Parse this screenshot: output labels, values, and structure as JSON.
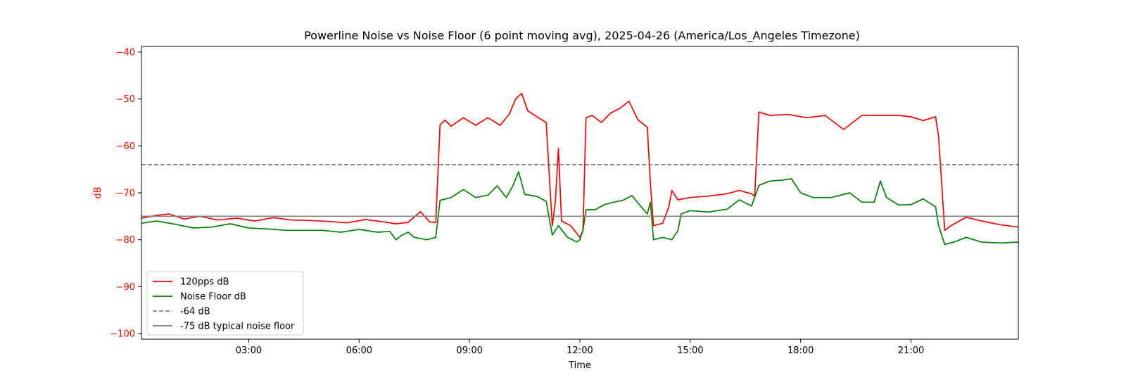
{
  "chart_data": {
    "type": "line",
    "title": "Powerline Noise vs Noise Floor (6 point moving avg), 2025-04-26 (America/Los_Angeles Timezone)",
    "xlabel": "Time",
    "ylabel": "dB",
    "ylabel_color": "#ff0000",
    "xlim": [
      "00:05",
      "23:55"
    ],
    "ylim": [
      -101.2,
      -38.8
    ],
    "x_ticks": [
      "03:00",
      "06:00",
      "09:00",
      "12:00",
      "15:00",
      "18:00",
      "21:00"
    ],
    "y_ticks": [
      -40,
      -50,
      -60,
      -70,
      -80,
      -90,
      -100
    ],
    "y_tick_color": "#ff0000",
    "grid": false,
    "legend_position": "lower-left",
    "series": [
      {
        "name": "120pps dB",
        "color": "#ff0000",
        "style": "solid",
        "points": [
          [
            "00:05",
            -75.4
          ],
          [
            "00:30",
            -74.8
          ],
          [
            "00:50",
            -74.5
          ],
          [
            "01:15",
            -75.6
          ],
          [
            "01:40",
            -75.0
          ],
          [
            "02:10",
            -75.8
          ],
          [
            "02:40",
            -75.4
          ],
          [
            "03:10",
            -76.0
          ],
          [
            "03:40",
            -75.3
          ],
          [
            "04:10",
            -75.8
          ],
          [
            "04:40",
            -75.9
          ],
          [
            "05:10",
            -76.1
          ],
          [
            "05:40",
            -76.4
          ],
          [
            "06:10",
            -75.7
          ],
          [
            "06:40",
            -76.2
          ],
          [
            "07:00",
            -76.6
          ],
          [
            "07:20",
            -76.3
          ],
          [
            "07:40",
            -74.0
          ],
          [
            "07:55",
            -76.2
          ],
          [
            "08:05",
            -76.3
          ],
          [
            "08:12",
            -55.5
          ],
          [
            "08:20",
            -54.5
          ],
          [
            "08:30",
            -55.8
          ],
          [
            "08:50",
            -54.0
          ],
          [
            "09:10",
            -55.6
          ],
          [
            "09:30",
            -54.0
          ],
          [
            "09:50",
            -55.6
          ],
          [
            "10:05",
            -53.2
          ],
          [
            "10:15",
            -50.0
          ],
          [
            "10:25",
            -48.8
          ],
          [
            "10:35",
            -52.5
          ],
          [
            "10:50",
            -53.8
          ],
          [
            "11:05",
            -55.0
          ],
          [
            "11:10",
            -66.0
          ],
          [
            "11:15",
            -77.0
          ],
          [
            "11:20",
            -72.0
          ],
          [
            "11:25",
            -60.5
          ],
          [
            "11:30",
            -76.0
          ],
          [
            "11:45",
            -77.0
          ],
          [
            "12:00",
            -79.5
          ],
          [
            "12:05",
            -78.0
          ],
          [
            "12:10",
            -54.0
          ],
          [
            "12:20",
            -53.5
          ],
          [
            "12:35",
            -55.0
          ],
          [
            "12:50",
            -53.0
          ],
          [
            "13:05",
            -52.0
          ],
          [
            "13:20",
            -50.5
          ],
          [
            "13:35",
            -54.5
          ],
          [
            "13:50",
            -56.0
          ],
          [
            "13:55",
            -68.0
          ],
          [
            "14:00",
            -77.0
          ],
          [
            "14:15",
            -76.5
          ],
          [
            "14:25",
            -73.0
          ],
          [
            "14:30",
            -69.5
          ],
          [
            "14:40",
            -71.5
          ],
          [
            "15:00",
            -71.0
          ],
          [
            "15:30",
            -70.7
          ],
          [
            "16:00",
            -70.2
          ],
          [
            "16:20",
            -69.5
          ],
          [
            "16:40",
            -70.2
          ],
          [
            "16:45",
            -70.8
          ],
          [
            "16:52",
            -52.8
          ],
          [
            "17:10",
            -53.5
          ],
          [
            "17:40",
            -53.3
          ],
          [
            "18:10",
            -54.0
          ],
          [
            "18:40",
            -53.5
          ],
          [
            "19:10",
            -56.5
          ],
          [
            "19:40",
            -53.5
          ],
          [
            "20:10",
            -53.5
          ],
          [
            "20:40",
            -53.5
          ],
          [
            "21:00",
            -53.8
          ],
          [
            "21:20",
            -54.6
          ],
          [
            "21:40",
            -53.8
          ],
          [
            "21:45",
            -58.0
          ],
          [
            "21:55",
            -78.0
          ],
          [
            "22:05",
            -77.0
          ],
          [
            "22:30",
            -75.2
          ],
          [
            "22:55",
            -76.0
          ],
          [
            "23:25",
            -76.8
          ],
          [
            "23:55",
            -77.3
          ]
        ]
      },
      {
        "name": "Noise Floor dB",
        "color": "#008000",
        "style": "solid",
        "points": [
          [
            "00:05",
            -76.5
          ],
          [
            "00:30",
            -76.0
          ],
          [
            "01:00",
            -76.7
          ],
          [
            "01:30",
            -77.5
          ],
          [
            "02:00",
            -77.3
          ],
          [
            "02:30",
            -76.6
          ],
          [
            "03:00",
            -77.5
          ],
          [
            "03:30",
            -77.7
          ],
          [
            "04:00",
            -78.0
          ],
          [
            "04:30",
            -78.0
          ],
          [
            "05:00",
            -78.0
          ],
          [
            "05:30",
            -78.4
          ],
          [
            "06:00",
            -77.8
          ],
          [
            "06:30",
            -78.4
          ],
          [
            "06:50",
            -78.2
          ],
          [
            "07:00",
            -80.0
          ],
          [
            "07:10",
            -79.0
          ],
          [
            "07:20",
            -78.4
          ],
          [
            "07:30",
            -79.5
          ],
          [
            "07:50",
            -80.0
          ],
          [
            "08:05",
            -79.5
          ],
          [
            "08:12",
            -71.6
          ],
          [
            "08:30",
            -71.0
          ],
          [
            "08:50",
            -69.3
          ],
          [
            "09:10",
            -71.0
          ],
          [
            "09:30",
            -70.5
          ],
          [
            "09:45",
            -68.5
          ],
          [
            "10:00",
            -71.0
          ],
          [
            "10:10",
            -68.7
          ],
          [
            "10:20",
            -65.5
          ],
          [
            "10:30",
            -70.3
          ],
          [
            "10:50",
            -70.8
          ],
          [
            "11:05",
            -71.8
          ],
          [
            "11:15",
            -79.0
          ],
          [
            "11:25",
            -77.0
          ],
          [
            "11:40",
            -79.5
          ],
          [
            "11:55",
            -80.5
          ],
          [
            "12:00",
            -80.0
          ],
          [
            "12:05",
            -78.0
          ],
          [
            "12:10",
            -73.6
          ],
          [
            "12:25",
            -73.6
          ],
          [
            "12:40",
            -72.5
          ],
          [
            "12:55",
            -72.0
          ],
          [
            "13:10",
            -71.6
          ],
          [
            "13:25",
            -70.6
          ],
          [
            "13:40",
            -73.0
          ],
          [
            "13:50",
            -74.5
          ],
          [
            "13:55",
            -72.0
          ],
          [
            "14:00",
            -80.0
          ],
          [
            "14:15",
            -79.5
          ],
          [
            "14:30",
            -80.0
          ],
          [
            "14:40",
            -78.0
          ],
          [
            "14:45",
            -74.5
          ],
          [
            "15:00",
            -73.8
          ],
          [
            "15:30",
            -74.1
          ],
          [
            "16:00",
            -73.5
          ],
          [
            "16:20",
            -71.5
          ],
          [
            "16:40",
            -72.8
          ],
          [
            "16:52",
            -68.4
          ],
          [
            "17:10",
            -67.5
          ],
          [
            "17:30",
            -67.3
          ],
          [
            "17:45",
            -67.0
          ],
          [
            "18:00",
            -70.0
          ],
          [
            "18:20",
            -71.0
          ],
          [
            "18:50",
            -71.0
          ],
          [
            "19:20",
            -70.0
          ],
          [
            "19:40",
            -72.0
          ],
          [
            "20:00",
            -72.0
          ],
          [
            "20:10",
            -67.5
          ],
          [
            "20:20",
            -71.0
          ],
          [
            "20:40",
            -72.6
          ],
          [
            "21:00",
            -72.5
          ],
          [
            "21:20",
            -71.3
          ],
          [
            "21:40",
            -73.0
          ],
          [
            "21:45",
            -77.0
          ],
          [
            "21:55",
            -81.0
          ],
          [
            "22:10",
            -80.5
          ],
          [
            "22:30",
            -79.5
          ],
          [
            "22:55",
            -80.5
          ],
          [
            "23:25",
            -80.7
          ],
          [
            "23:55",
            -80.5
          ]
        ]
      },
      {
        "name": "-64 dB",
        "color": "#808080",
        "style": "dashed",
        "points": [
          [
            "00:05",
            -64
          ],
          [
            "23:55",
            -64
          ]
        ]
      },
      {
        "name": "-75 dB typical noise floor",
        "color": "#808080",
        "style": "solid",
        "points": [
          [
            "00:05",
            -75
          ],
          [
            "23:55",
            -75
          ]
        ]
      }
    ]
  }
}
